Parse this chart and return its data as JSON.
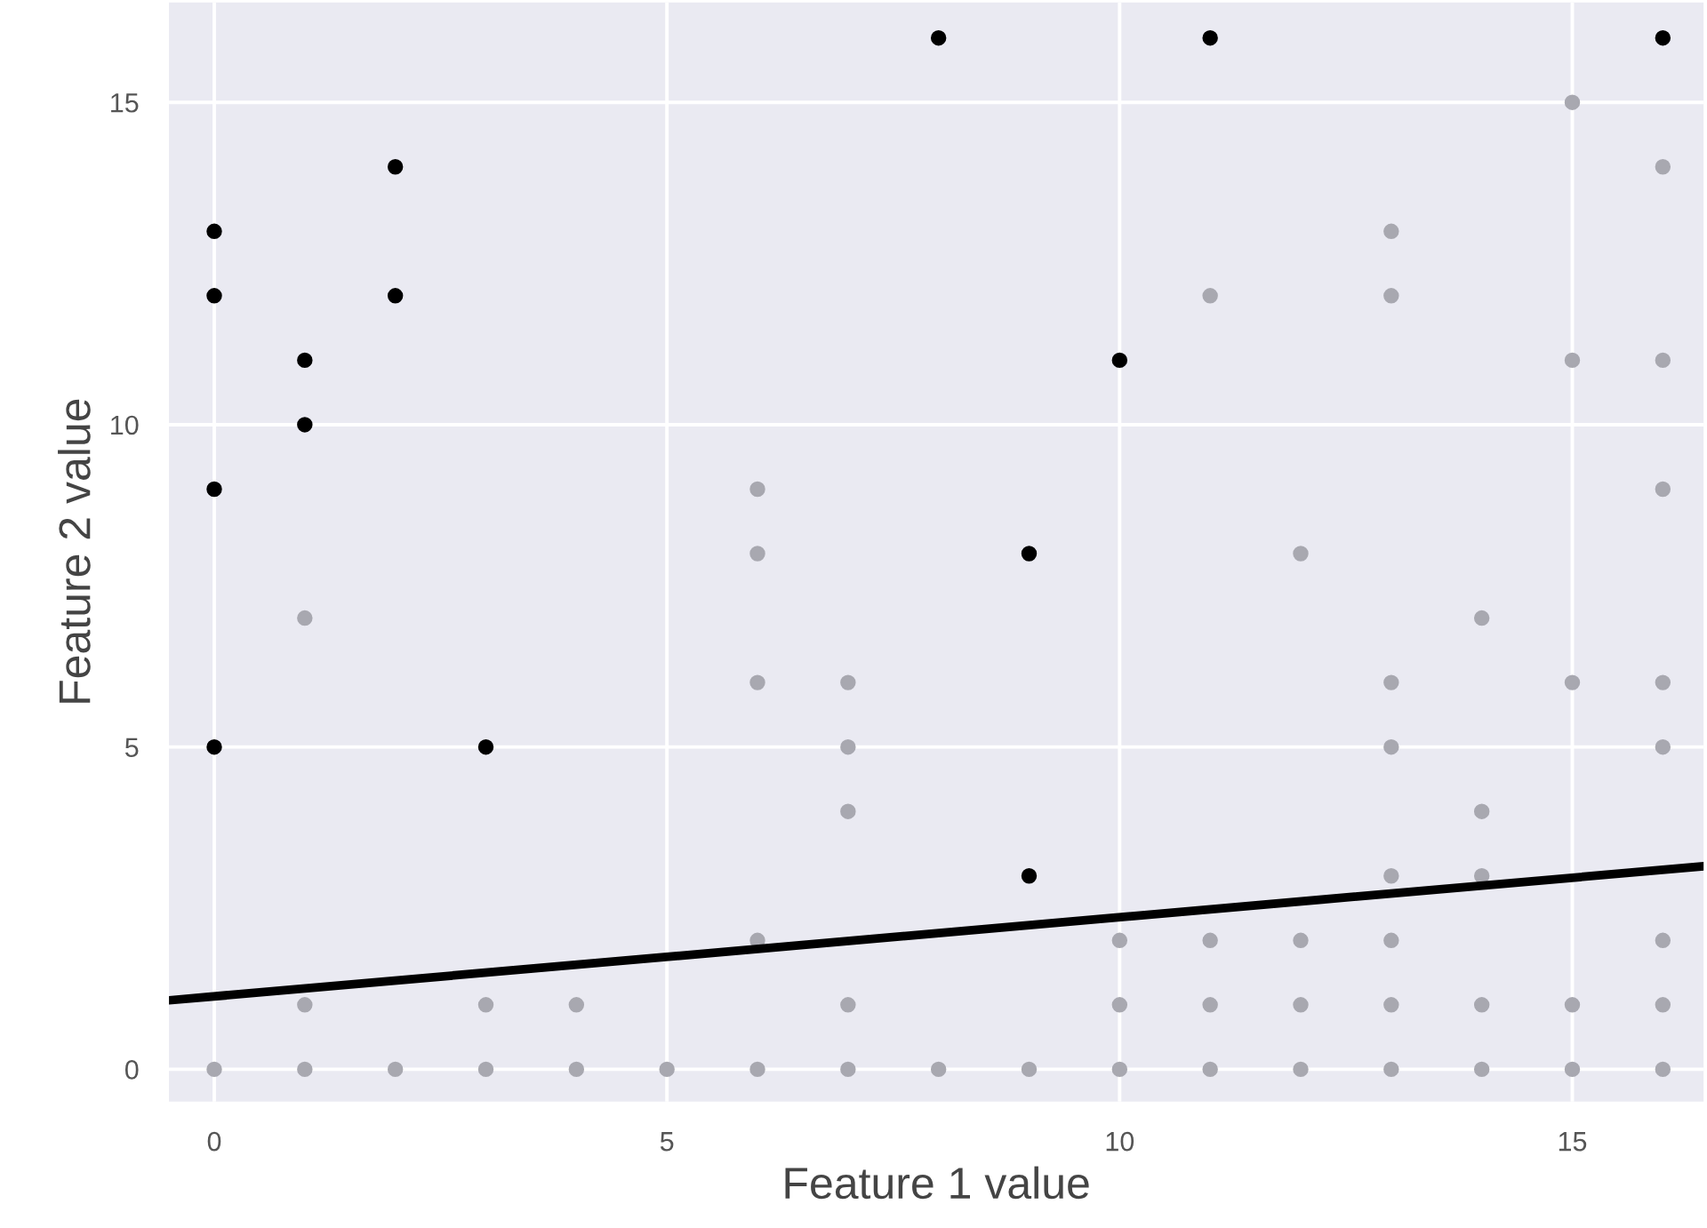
{
  "chart_data": {
    "type": "scatter",
    "xlabel": "Feature 1 value",
    "ylabel": "Feature 2 value",
    "xlim": [
      -0.5,
      16.45
    ],
    "ylim": [
      -0.5,
      16.55
    ],
    "xticks": [
      0,
      5,
      10,
      15
    ],
    "yticks": [
      0,
      5,
      10,
      15
    ],
    "grid": true,
    "series": [
      {
        "color": "#a8a8b0",
        "marker": "circle",
        "x": [
          0,
          1,
          2,
          3,
          4,
          5,
          6,
          7,
          8,
          9,
          10,
          11,
          12,
          13,
          14,
          15,
          16,
          1,
          3,
          4,
          7,
          10,
          11,
          12,
          13,
          14,
          15,
          16,
          6,
          10,
          11,
          12,
          13,
          16,
          13,
          14,
          7,
          14,
          7,
          13,
          16,
          6,
          7,
          13,
          15,
          16,
          1,
          14,
          6,
          12,
          6,
          16,
          15,
          16,
          11,
          13,
          13,
          16,
          15
        ],
        "values": [
          0,
          0,
          0,
          0,
          0,
          0,
          0,
          0,
          0,
          0,
          0,
          0,
          0,
          0,
          0,
          0,
          0,
          1,
          1,
          1,
          1,
          1,
          1,
          1,
          1,
          1,
          1,
          1,
          2,
          2,
          2,
          2,
          2,
          2,
          3,
          3,
          4,
          4,
          5,
          5,
          5,
          6,
          6,
          6,
          6,
          6,
          7,
          7,
          8,
          8,
          9,
          9,
          11,
          11,
          12,
          12,
          13,
          14,
          15
        ]
      },
      {
        "color": "#000000",
        "marker": "circle",
        "x": [
          0,
          0,
          0,
          0,
          1,
          1,
          2,
          2,
          3,
          8,
          9,
          9,
          10,
          11,
          16
        ],
        "values": [
          13,
          12,
          9,
          5,
          11,
          10,
          14,
          12,
          5,
          16,
          8,
          3,
          11,
          16,
          16
        ]
      },
      {
        "type": "line",
        "marker": "none",
        "color": "#000000",
        "x": [
          -0.5,
          16.45
        ],
        "values": [
          1.07,
          3.15
        ]
      }
    ]
  }
}
